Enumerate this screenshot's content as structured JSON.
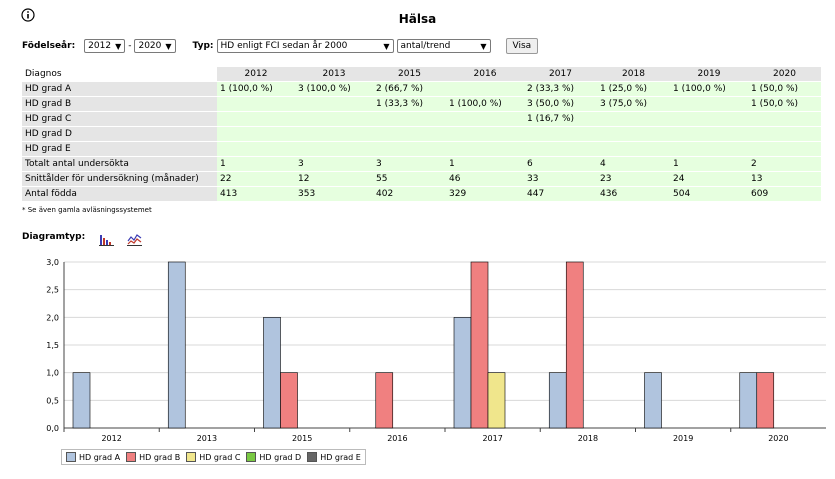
{
  "page": {
    "title": "Hälsa",
    "info_icon": "info-circle-icon"
  },
  "controls": {
    "birth_year_label": "Födelseår:",
    "from_year": "2012",
    "separator": "-",
    "to_year": "2020",
    "type_label": "Typ:",
    "type_value": "HD enligt FCI sedan år 2000",
    "mode_value": "antal/trend",
    "show_button": "Visa"
  },
  "table": {
    "header_label": "Diagnos",
    "years": [
      "2012",
      "2013",
      "2015",
      "2016",
      "2017",
      "2018",
      "2019",
      "2020"
    ],
    "rows": [
      {
        "label": "HD grad A",
        "cells": [
          "1 (100,0 %)",
          "3 (100,0 %)",
          "2 (66,7 %)",
          "",
          "2 (33,3 %)",
          "1 (25,0 %)",
          "1 (100,0 %)",
          "1 (50,0 %)"
        ]
      },
      {
        "label": "HD grad B",
        "cells": [
          "",
          "",
          "1 (33,3 %)",
          "1 (100,0 %)",
          "3 (50,0 %)",
          "3 (75,0 %)",
          "",
          "1 (50,0 %)"
        ]
      },
      {
        "label": "HD grad C",
        "cells": [
          "",
          "",
          "",
          "",
          "1 (16,7 %)",
          "",
          "",
          ""
        ]
      },
      {
        "label": "HD grad D",
        "cells": [
          "",
          "",
          "",
          "",
          "",
          "",
          "",
          ""
        ]
      },
      {
        "label": "HD grad E",
        "cells": [
          "",
          "",
          "",
          "",
          "",
          "",
          "",
          ""
        ]
      },
      {
        "label": "Totalt antal undersökta",
        "cells": [
          "1",
          "3",
          "3",
          "1",
          "6",
          "4",
          "1",
          "2"
        ]
      },
      {
        "label": "Snittålder för undersökning (månader)",
        "cells": [
          "22",
          "12",
          "55",
          "46",
          "33",
          "23",
          "24",
          "13"
        ]
      },
      {
        "label": "Antal födda",
        "cells": [
          "413",
          "353",
          "402",
          "329",
          "447",
          "436",
          "504",
          "609"
        ]
      }
    ],
    "note": "* Se även gamla avläsningssystemet"
  },
  "diagram": {
    "type_label": "Diagramtyp:",
    "bar_icon": "bar-chart-icon",
    "line_icon": "line-chart-icon"
  },
  "chart_data": {
    "type": "bar",
    "categories": [
      "2012",
      "2013",
      "2015",
      "2016",
      "2017",
      "2018",
      "2019",
      "2020"
    ],
    "ylim": [
      0,
      3
    ],
    "yticks": [
      "0,0",
      "0,5",
      "1,0",
      "1,5",
      "2,0",
      "2,5",
      "3,0"
    ],
    "grid": true,
    "legend_position": "bottom-left",
    "series": [
      {
        "name": "HD grad A",
        "color": "#b0c4de",
        "values": [
          1,
          3,
          2,
          0,
          2,
          1,
          1,
          1
        ]
      },
      {
        "name": "HD grad B",
        "color": "#f08080",
        "values": [
          0,
          0,
          1,
          1,
          3,
          3,
          0,
          1
        ]
      },
      {
        "name": "HD grad C",
        "color": "#f0e68c",
        "values": [
          0,
          0,
          0,
          0,
          1,
          0,
          0,
          0
        ]
      },
      {
        "name": "HD grad D",
        "color": "#7ac943",
        "values": [
          0,
          0,
          0,
          0,
          0,
          0,
          0,
          0
        ]
      },
      {
        "name": "HD grad E",
        "color": "#666666",
        "values": [
          0,
          0,
          0,
          0,
          0,
          0,
          0,
          0
        ]
      }
    ]
  }
}
